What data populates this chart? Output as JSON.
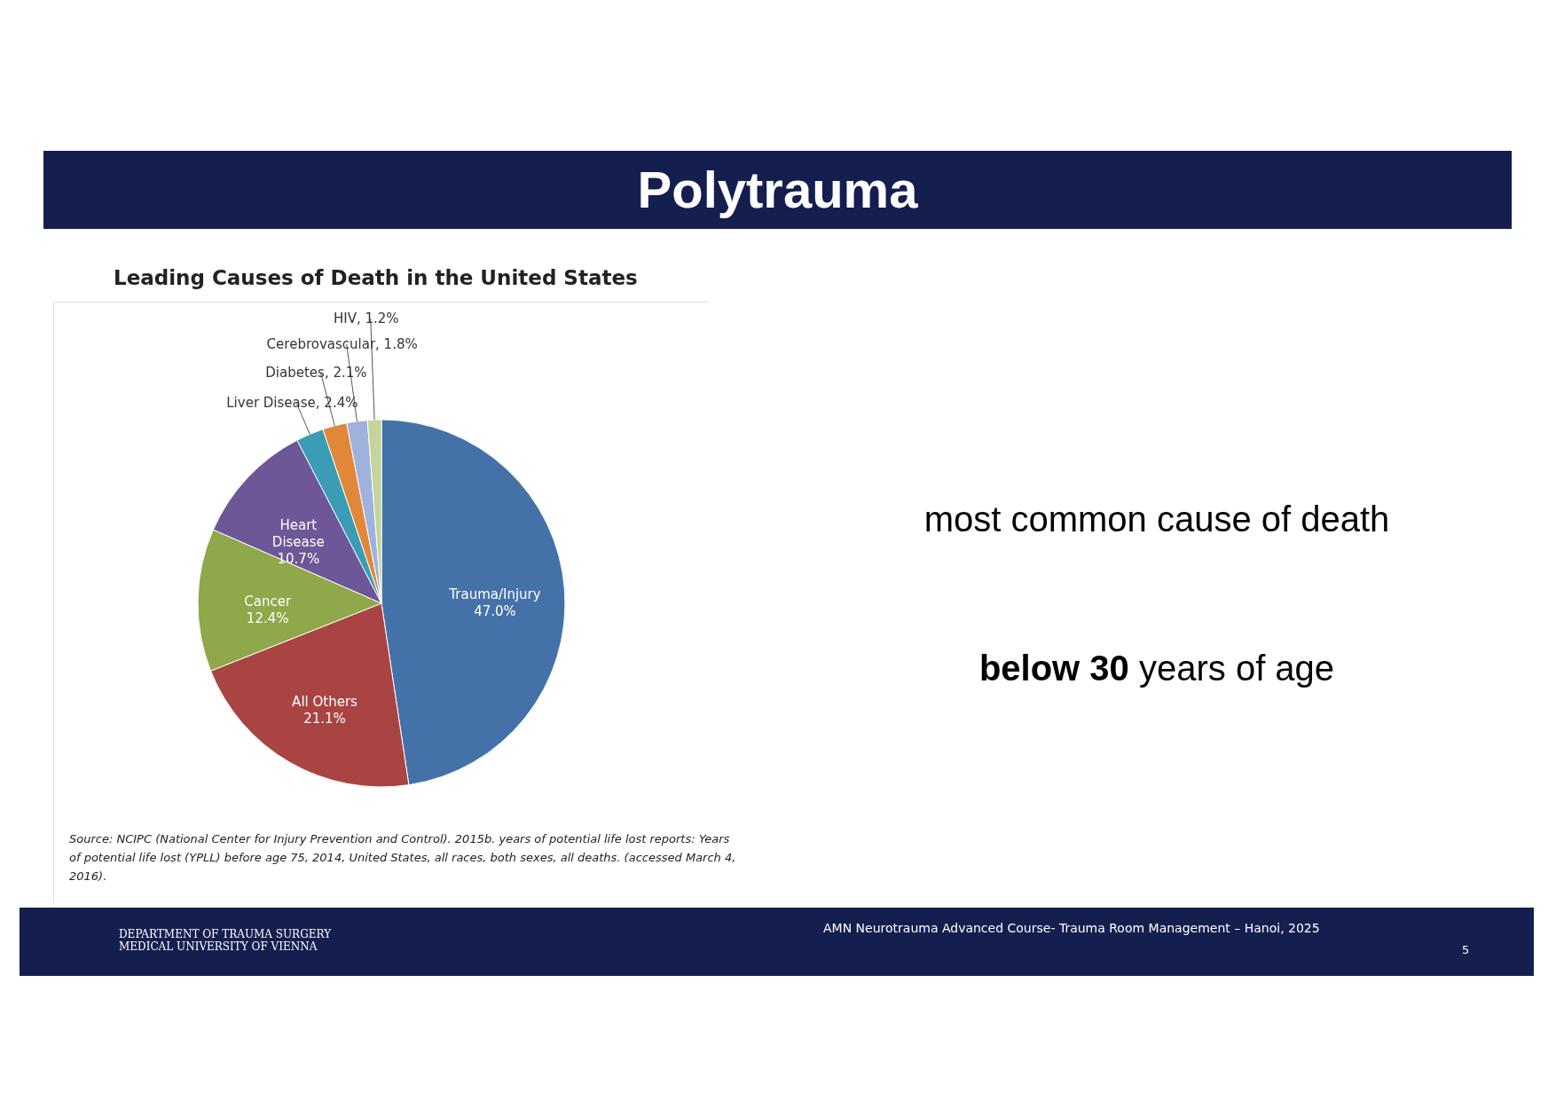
{
  "chart_data": {
    "type": "pie",
    "title": "Polytrauma",
    "subtitle": "Leading Causes of Death in the United States",
    "categories": [
      "Trauma/Injury",
      "All Others",
      "Cancer",
      "Heart Disease",
      "Liver Disease",
      "Diabetes",
      "Cerebrovascular",
      "HIV"
    ],
    "values": [
      47.0,
      21.1,
      12.4,
      10.7,
      2.4,
      2.1,
      1.8,
      1.2
    ],
    "value_labels": [
      "47.0%",
      "21.1%",
      "12.4%",
      "10.7%",
      "2.4%",
      "2.1%",
      "1.8%",
      "1.2%"
    ],
    "colors": [
      "#4472a8",
      "#a94442",
      "#8ea84a",
      "#6e5797",
      "#3b9cb5",
      "#e0873a",
      "#9fb2dc",
      "#c4d49a"
    ],
    "annotations": [
      "Source: NCIPC (National Center for Injury Prevention and Control). 2015b. years of potential life lost reports: Years of potential life lost (YPLL) before age 75, 2014, United States, all races, both sexes, all deaths. (accessed March 4, 2016).",
      "most common cause of death",
      "below 30",
      "years of age",
      "DEPARTMENT OF TRAUMA SURGERY",
      "MEDICAL UNIVERSITY OF VIENNA",
      "AMN Neurotrauma Advanced Course- Trauma Room Management – Hanoi, 2025",
      "5"
    ]
  }
}
